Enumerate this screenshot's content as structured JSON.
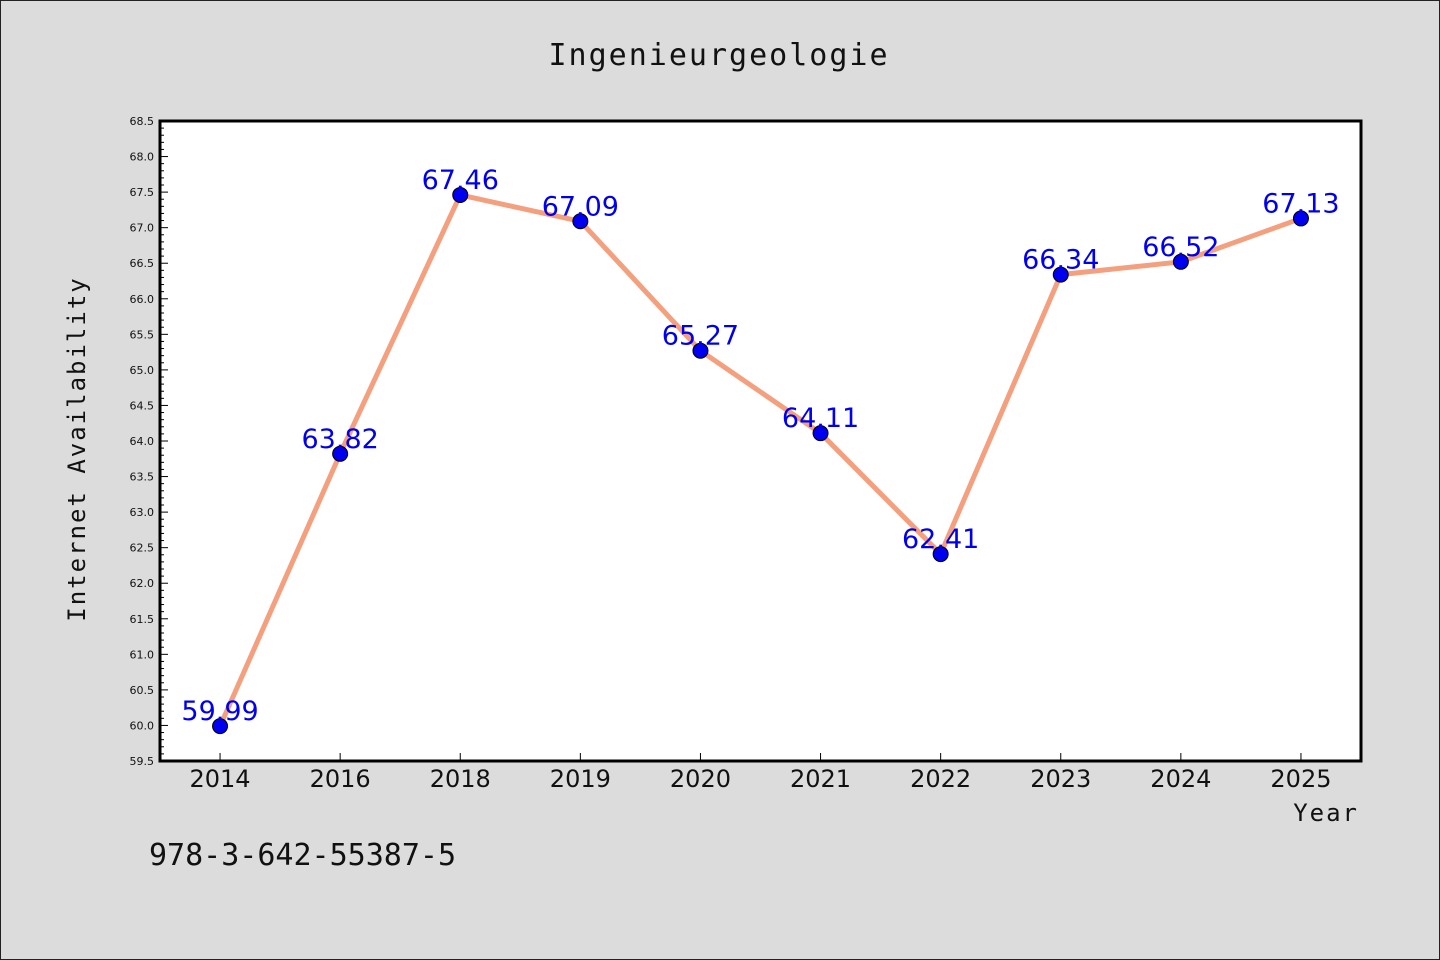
{
  "chart_data": {
    "type": "line",
    "title": "Ingenieurgeologie",
    "xlabel": "Year",
    "ylabel": "Internet Availability",
    "categories": [
      "2014",
      "2016",
      "2018",
      "2019",
      "2020",
      "2021",
      "2022",
      "2023",
      "2024",
      "2025"
    ],
    "values": [
      59.99,
      63.82,
      67.46,
      67.09,
      65.27,
      64.11,
      62.41,
      66.34,
      66.52,
      67.13
    ],
    "data_labels": [
      "59.99",
      "63.82",
      "67.46",
      "67.09",
      "65.27",
      "64.11",
      "62.41",
      "66.34",
      "66.52",
      "67.13"
    ],
    "ylim": [
      59.5,
      68.5
    ],
    "yticks": [
      "59.5",
      "60.0",
      "60.5",
      "61.0",
      "61.5",
      "62.0",
      "62.5",
      "63.0",
      "63.5",
      "64.0",
      "64.5",
      "65.0",
      "65.5",
      "66.0",
      "66.5",
      "67.0",
      "67.5",
      "68.0",
      "68.5"
    ],
    "grid": false,
    "line_color": "#f4a07e",
    "marker_color": "#0000ee",
    "label_color": "#0000ee"
  },
  "footer": {
    "isbn": "978-3-642-55387-5"
  }
}
